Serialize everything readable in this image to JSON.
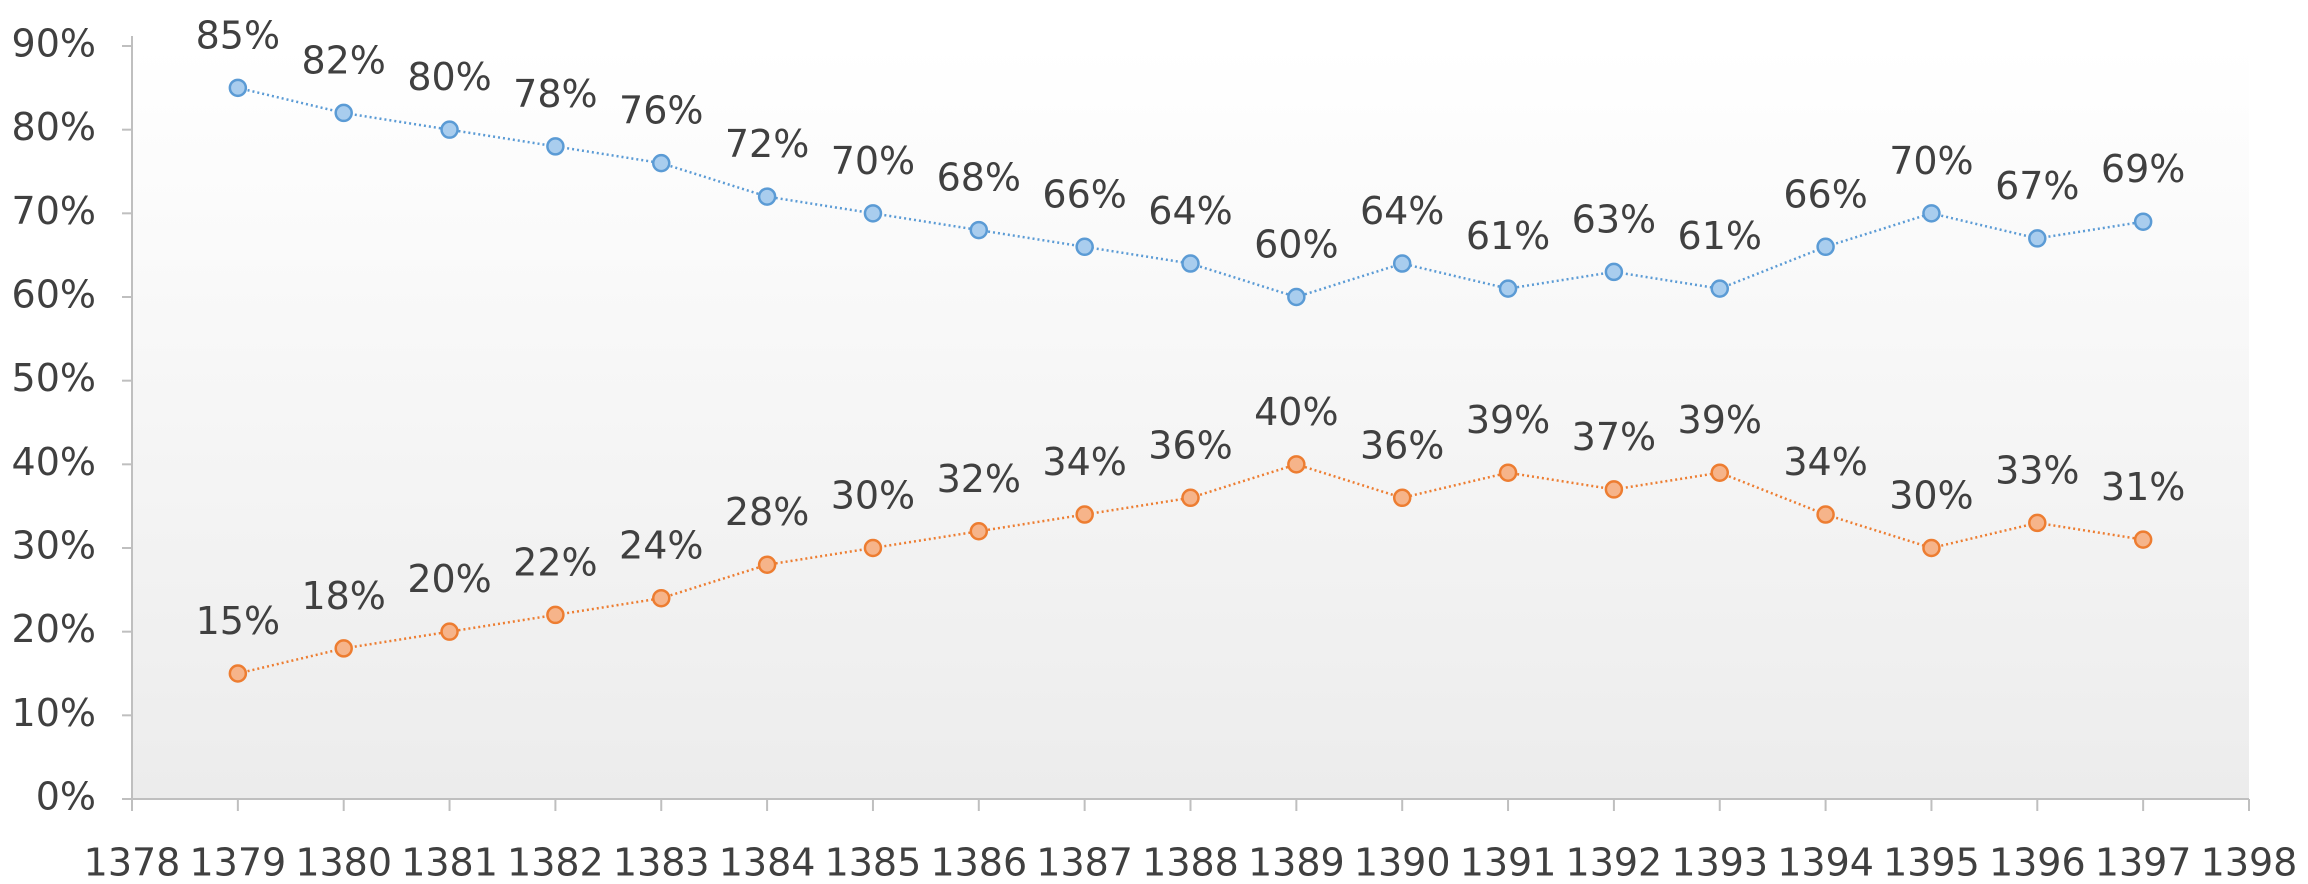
{
  "chart_data": {
    "type": "line",
    "x": [
      1379,
      1380,
      1381,
      1382,
      1383,
      1384,
      1385,
      1386,
      1387,
      1388,
      1389,
      1390,
      1391,
      1392,
      1393,
      1394,
      1395,
      1396,
      1397
    ],
    "series": [
      {
        "color": "#5b9bd5",
        "marker_fill": "#a9cdee",
        "values": [
          85,
          82,
          80,
          78,
          76,
          72,
          70,
          68,
          66,
          64,
          60,
          64,
          61,
          63,
          61,
          66,
          70,
          67,
          69
        ],
        "value_labels": [
          "85%",
          "82%",
          "80%",
          "78%",
          "76%",
          "72%",
          "70%",
          "68%",
          "66%",
          "64%",
          "60%",
          "64%",
          "61%",
          "63%",
          "61%",
          "66%",
          "70%",
          "67%",
          "69%"
        ]
      },
      {
        "color": "#ed7d31",
        "marker_fill": "#f6b48a",
        "values": [
          15,
          18,
          20,
          22,
          24,
          28,
          30,
          32,
          34,
          36,
          40,
          36,
          39,
          37,
          39,
          34,
          30,
          33,
          31
        ],
        "value_labels": [
          "15%",
          "18%",
          "20%",
          "22%",
          "24%",
          "28%",
          "30%",
          "32%",
          "34%",
          "36%",
          "40%",
          "36%",
          "39%",
          "37%",
          "39%",
          "34%",
          "30%",
          "33%",
          "31%"
        ]
      }
    ],
    "xlim": [
      1378,
      1398
    ],
    "xticks": [
      1378,
      1379,
      1380,
      1381,
      1382,
      1383,
      1384,
      1385,
      1386,
      1387,
      1388,
      1389,
      1390,
      1391,
      1392,
      1393,
      1394,
      1395,
      1396,
      1397,
      1398
    ],
    "ylim": [
      0,
      90
    ],
    "yticks": [
      {
        "value": 0,
        "label": "0%"
      },
      {
        "value": 10,
        "label": "10%"
      },
      {
        "value": 20,
        "label": "20%"
      },
      {
        "value": 30,
        "label": "30%"
      },
      {
        "value": 40,
        "label": "40%"
      },
      {
        "value": 50,
        "label": "50%"
      },
      {
        "value": 60,
        "label": "60%"
      },
      {
        "value": 70,
        "label": "70%"
      },
      {
        "value": 80,
        "label": "80%"
      },
      {
        "value": 90,
        "label": "90%"
      }
    ],
    "grid": false
  }
}
